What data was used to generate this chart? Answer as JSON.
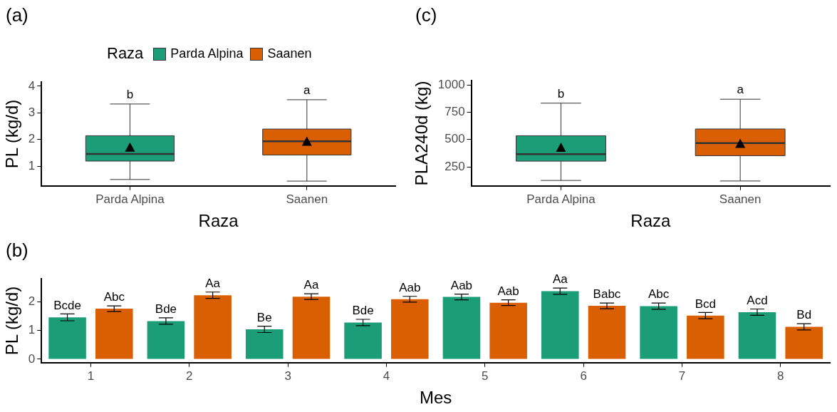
{
  "chart_data": [
    {
      "type": "box",
      "title": "(a)",
      "xlabel": "Raza",
      "ylabel": "PL (kg/d)",
      "legend_title": "Raza",
      "legend": "top",
      "grid": false,
      "categories": [
        "Parda Alpina",
        "Saanen"
      ],
      "ylim": [
        0.26,
        4.15
      ],
      "yticks": [
        1,
        2,
        3,
        4
      ],
      "series": [
        {
          "name": "Parda Alpina",
          "color": "#1b9e77",
          "boxes": [
            {
              "low": 0.5,
              "q1": 1.19,
              "median": 1.46,
              "q3": 2.14,
              "high": 3.33,
              "mean": 1.68
            },
            null
          ]
        },
        {
          "name": "Saanen",
          "color": "#d95f02",
          "boxes": [
            null,
            {
              "low": 0.44,
              "q1": 1.42,
              "median": 1.93,
              "q3": 2.39,
              "high": 3.49,
              "mean": 1.9
            }
          ]
        }
      ],
      "annotations": [
        "b",
        "a"
      ]
    },
    {
      "type": "bar",
      "title": "(b)",
      "xlabel": "Mes",
      "ylabel": "PL (kg/d)",
      "grid": false,
      "categories": [
        "1",
        "2",
        "3",
        "4",
        "5",
        "6",
        "7",
        "8"
      ],
      "ylim": [
        -0.12,
        2.8
      ],
      "yticks": [
        0,
        1,
        2
      ],
      "series": [
        {
          "color": "#1b9e77",
          "values": [
            1.46,
            1.33,
            1.04,
            1.28,
            2.17,
            2.37,
            1.85,
            1.64
          ],
          "errors": [
            0.12,
            0.11,
            0.11,
            0.11,
            0.1,
            0.11,
            0.11,
            0.11
          ],
          "value_labels": [
            "Bcde",
            "Bde",
            "Be",
            "Bde",
            "Aab",
            "Aa",
            "Abc",
            "Acd"
          ]
        },
        {
          "color": "#d95f02",
          "values": [
            1.76,
            2.23,
            2.18,
            2.09,
            1.97,
            1.86,
            1.52,
            1.13
          ],
          "errors": [
            0.1,
            0.11,
            0.1,
            0.1,
            0.1,
            0.1,
            0.11,
            0.11
          ],
          "value_labels": [
            "Abc",
            "Aa",
            "Aa",
            "Aab",
            "Aab",
            "Babc",
            "Bcd",
            "Bd"
          ]
        }
      ]
    },
    {
      "type": "box",
      "title": "(c)",
      "xlabel": "Raza",
      "ylabel": "PLA240d (kg)",
      "grid": false,
      "categories": [
        "Parda Alpina",
        "Saanen"
      ],
      "ylim": [
        75,
        1040
      ],
      "yticks": [
        250,
        500,
        750,
        1000
      ],
      "series": [
        {
          "color": "#1b9e77",
          "boxes": [
            {
              "low": 125,
              "q1": 302,
              "median": 366,
              "q3": 535,
              "high": 834,
              "mean": 421
            },
            null
          ]
        },
        {
          "color": "#d95f02",
          "boxes": [
            null,
            {
              "low": 120,
              "q1": 352,
              "median": 468,
              "q3": 597,
              "high": 870,
              "mean": 456
            }
          ]
        }
      ],
      "annotations": [
        "b",
        "a"
      ]
    }
  ]
}
